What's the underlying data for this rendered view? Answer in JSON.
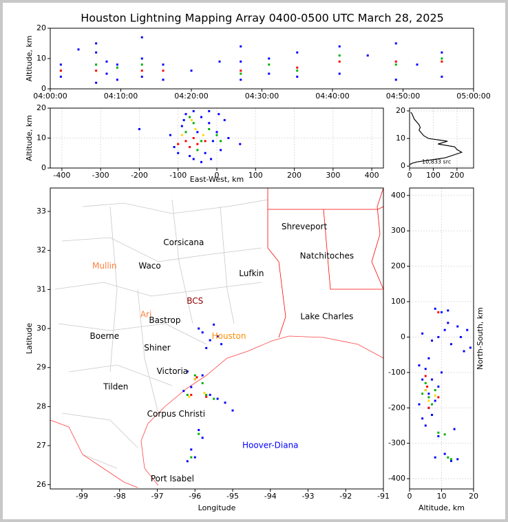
{
  "chart_data": [
    {
      "type": "scatter",
      "title": "Houston Lightning Mapping Array 0400-0500 UTC March 28, 2025",
      "ylabel": "Altitude, km",
      "xlim": [
        0,
        60
      ],
      "xticks": [
        {
          "value": 0,
          "label": "04:00:00"
        },
        {
          "value": 10,
          "label": "04:10:00"
        },
        {
          "value": 20,
          "label": "04:20:00"
        },
        {
          "value": 30,
          "label": "04:30:00"
        },
        {
          "value": 40,
          "label": "04:40:00"
        },
        {
          "value": 50,
          "label": "04:50:00"
        },
        {
          "value": 60,
          "label": "05:00:00"
        }
      ],
      "ylim": [
        0,
        20
      ],
      "yticks": [
        0,
        10,
        20
      ],
      "grid": false,
      "series": [
        {
          "color": "#0000ff",
          "x": [
            1.5,
            1.5,
            6.5,
            6.5,
            6.5,
            8,
            8,
            9.5,
            9.5,
            13,
            13,
            13,
            16,
            16,
            20,
            27,
            27,
            27,
            31,
            31,
            35,
            35,
            41,
            41,
            49,
            49,
            55.5,
            55.5,
            4,
            24,
            45,
            52
          ],
          "y": [
            4,
            8,
            2,
            12,
            15,
            5,
            9,
            3,
            8,
            4,
            10,
            17,
            3,
            8,
            6,
            3,
            9,
            14,
            5,
            10,
            4,
            12,
            5,
            14,
            3,
            15,
            4,
            12,
            13,
            9,
            11,
            8
          ]
        },
        {
          "color": "#00b000",
          "x": [
            1.5,
            6.5,
            9.5,
            13,
            27,
            31,
            35,
            41,
            49,
            55.5
          ],
          "y": [
            6,
            8,
            7,
            8,
            5,
            8,
            6,
            11,
            8,
            10
          ]
        },
        {
          "color": "#ff0000",
          "x": [
            1.5,
            6.5,
            13,
            16,
            27,
            35,
            41,
            49,
            55.5
          ],
          "y": [
            6,
            6,
            6,
            6,
            6,
            7,
            9,
            9,
            9
          ]
        }
      ]
    },
    {
      "type": "scatter",
      "xlabel": "East-West, km",
      "ylabel": "Altitude, km",
      "xlim": [
        -430,
        430
      ],
      "xticks": [
        -400,
        -300,
        -200,
        -100,
        0,
        100,
        200,
        300,
        400
      ],
      "ylim": [
        0,
        20
      ],
      "yticks": [
        0,
        10,
        20
      ],
      "grid": true,
      "series": [
        {
          "color": "#0000ff",
          "x": [
            -110,
            -90,
            -80,
            -70,
            -60,
            -50,
            -40,
            -30,
            -20,
            -10,
            0,
            10,
            20,
            30,
            -100,
            -60,
            -40,
            -20,
            -200,
            60,
            -120,
            5,
            -85,
            -15
          ],
          "y": [
            7,
            14,
            18,
            4,
            19,
            12,
            17,
            5,
            15,
            9,
            12,
            6,
            16,
            10,
            5,
            3,
            2,
            19,
            13,
            8,
            11,
            18,
            16,
            3
          ]
        },
        {
          "color": "#00b000",
          "x": [
            -80,
            -60,
            -40,
            -20,
            0,
            -50,
            -70,
            10
          ],
          "y": [
            12,
            15,
            9,
            13,
            11,
            6,
            17,
            9
          ]
        },
        {
          "color": "#ffd700",
          "x": [
            -90,
            -55,
            -35,
            -65
          ],
          "y": [
            11,
            13,
            11,
            16
          ]
        },
        {
          "color": "#ff0000",
          "x": [
            -100,
            -80,
            -70,
            -60,
            -50,
            -30
          ],
          "y": [
            8,
            9,
            7,
            10,
            8,
            9
          ]
        }
      ]
    },
    {
      "type": "line",
      "annotation": "10,833 src",
      "xlim": [
        0,
        270
      ],
      "xticks": [
        0,
        100,
        200
      ],
      "ylim": [
        -0.7,
        21
      ],
      "yticks": [
        0,
        10,
        20
      ],
      "grid": true,
      "x": [
        0,
        10,
        30,
        70,
        150,
        220,
        200,
        190,
        120,
        160,
        80,
        60,
        50,
        40,
        45,
        40,
        30,
        20,
        15,
        10,
        5
      ],
      "series": [
        {
          "color": "#000000",
          "values": [
            0.5,
            1,
            1.5,
            2,
            3,
            5,
            6,
            7,
            8,
            9,
            10,
            11,
            12,
            13,
            14,
            15,
            16,
            17,
            18,
            19,
            19.5
          ]
        }
      ]
    },
    {
      "type": "scatter",
      "xlabel": "Longitude",
      "ylabel": "Latitude",
      "xlim": [
        -99.84,
        -91
      ],
      "xticks": [
        -99,
        -98,
        -97,
        -96,
        -95,
        -94,
        -93,
        -92,
        -91
      ],
      "ylim": [
        25.89,
        33.6
      ],
      "yticks": [
        26,
        27,
        28,
        29,
        30,
        31,
        32,
        33
      ],
      "grid": false,
      "series": [
        {
          "color": "#0000ff",
          "x": [
            -95.8,
            -95.6,
            -95.4,
            -95.7,
            -95.5,
            -95.9,
            -95.3,
            -96.2,
            -96.0,
            -95.8,
            -96.3,
            -95.6,
            -95.4,
            -95.2,
            -95.0,
            -96.1,
            -95.9,
            -95.8,
            -96.0,
            -96.2,
            -96.1
          ],
          "y": [
            29.9,
            29.7,
            29.8,
            29.5,
            30.1,
            30.0,
            29.6,
            28.9,
            28.7,
            28.8,
            28.4,
            28.3,
            28.2,
            28.1,
            27.9,
            28.5,
            27.4,
            27.2,
            26.7,
            26.6,
            26.9
          ]
        },
        {
          "color": "#00b000",
          "x": [
            -96.0,
            -95.8,
            -95.7,
            -96.2,
            -95.5,
            -95.9,
            -96.1
          ],
          "y": [
            28.8,
            28.6,
            28.3,
            28.3,
            28.2,
            27.3,
            26.7
          ]
        },
        {
          "color": "#ffd700",
          "x": [
            -96.0,
            -95.75,
            -96.15
          ],
          "y": [
            28.7,
            28.35,
            28.25
          ]
        },
        {
          "color": "#ff0000",
          "x": [
            -95.95,
            -95.7,
            -96.1
          ],
          "y": [
            28.75,
            28.25,
            28.3
          ]
        }
      ],
      "labels": [
        {
          "text": "Shreveport",
          "x": -93.1,
          "y": 32.6,
          "color": "#000000"
        },
        {
          "text": "Corsicana",
          "x": -96.3,
          "y": 32.2,
          "color": "#000000"
        },
        {
          "text": "Natchitoches",
          "x": -92.5,
          "y": 31.85,
          "color": "#000000"
        },
        {
          "text": "Mullin",
          "x": -98.4,
          "y": 31.6,
          "color": "#ff8040"
        },
        {
          "text": "Waco",
          "x": -97.2,
          "y": 31.6,
          "color": "#000000"
        },
        {
          "text": "Lufkin",
          "x": -94.5,
          "y": 31.4,
          "color": "#000000"
        },
        {
          "text": "BCS",
          "x": -96.0,
          "y": 30.7,
          "color": "#8b0000"
        },
        {
          "text": "Ari",
          "x": -97.3,
          "y": 30.35,
          "color": "#ff8040"
        },
        {
          "text": "Lake Charles",
          "x": -92.5,
          "y": 30.3,
          "color": "#000000"
        },
        {
          "text": "Bastrop",
          "x": -96.8,
          "y": 30.2,
          "color": "#000000"
        },
        {
          "text": "Boerne",
          "x": -98.4,
          "y": 29.8,
          "color": "#000000"
        },
        {
          "text": "Houston",
          "x": -95.1,
          "y": 29.8,
          "color": "#ff8c00"
        },
        {
          "text": "Shiner",
          "x": -97.0,
          "y": 29.5,
          "color": "#000000"
        },
        {
          "text": "Victoria",
          "x": -96.6,
          "y": 28.9,
          "color": "#000000"
        },
        {
          "text": "Tilden",
          "x": -98.1,
          "y": 28.5,
          "color": "#000000"
        },
        {
          "text": "Corpus Christi",
          "x": -96.5,
          "y": 27.8,
          "color": "#000000"
        },
        {
          "text": "Hoover-Diana",
          "x": -94.0,
          "y": 27.0,
          "color": "#0000ff"
        },
        {
          "text": "Port Isabel",
          "x": -96.6,
          "y": 26.15,
          "color": "#000000"
        }
      ]
    },
    {
      "type": "scatter",
      "xlabel": "Altitude, km",
      "ylabel": "North-South, km",
      "xlim": [
        0,
        20
      ],
      "xticks": [
        0,
        10,
        20
      ],
      "ylim": [
        -429,
        421
      ],
      "yticks": [
        -400,
        -300,
        -200,
        -100,
        0,
        100,
        200,
        300,
        400
      ],
      "grid": true,
      "series": [
        {
          "color": "#0000ff",
          "x": [
            3,
            4,
            5,
            6,
            7,
            8,
            9,
            10,
            4,
            5,
            6,
            7,
            3,
            5,
            8,
            10,
            12,
            9,
            11,
            13,
            15,
            4,
            7,
            12,
            16,
            18,
            19,
            6,
            9,
            14,
            17,
            8,
            11,
            13,
            15
          ],
          "y": [
            -80,
            -120,
            -150,
            -200,
            -220,
            -180,
            -140,
            -100,
            -230,
            -250,
            -160,
            -120,
            -190,
            -90,
            80,
            70,
            75,
            0,
            20,
            -20,
            30,
            10,
            -10,
            40,
            0,
            20,
            -30,
            -60,
            -280,
            -260,
            -40,
            -340,
            -330,
            -350,
            -345
          ]
        },
        {
          "color": "#00b000",
          "x": [
            5,
            6,
            7,
            4,
            8,
            9,
            11,
            12,
            13
          ],
          "y": [
            -130,
            -170,
            -190,
            -160,
            -150,
            -270,
            -275,
            -340,
            -345
          ]
        },
        {
          "color": "#ffd700",
          "x": [
            5,
            6,
            8
          ],
          "y": [
            -150,
            -180,
            -165
          ]
        },
        {
          "color": "#ff0000",
          "x": [
            5,
            5.5,
            9,
            6,
            9
          ],
          "y": [
            -110,
            -140,
            -170,
            -200,
            70
          ]
        }
      ]
    }
  ]
}
